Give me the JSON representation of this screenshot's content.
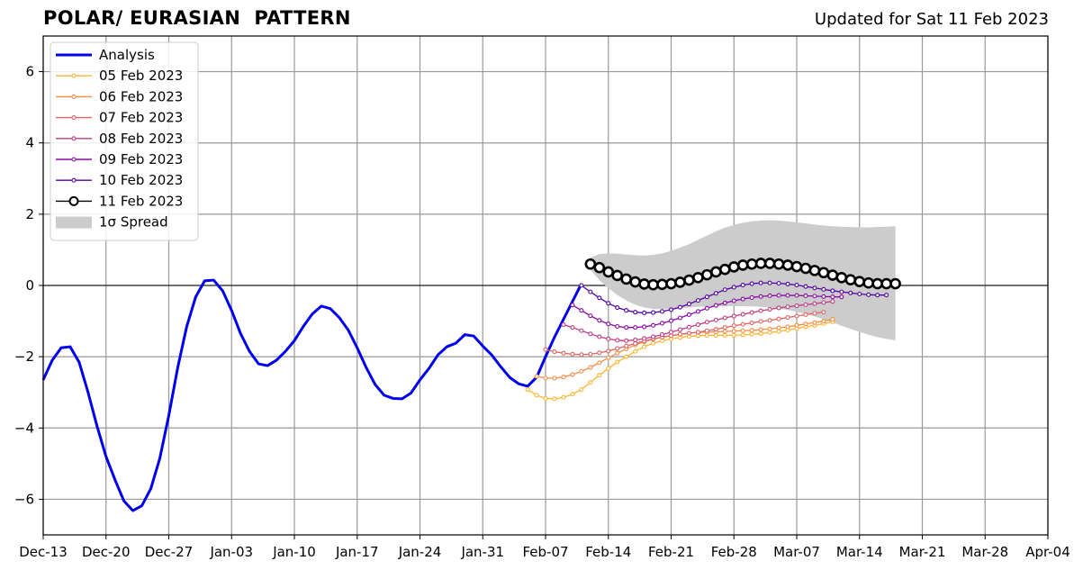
{
  "chart_data": {
    "type": "line",
    "title": "POLAR/ EURASIAN  PATTERN",
    "subtitle": "Updated for Sat 11 Feb 2023",
    "xlabel": "",
    "ylabel": "",
    "x_ticks": [
      "Dec-13",
      "Dec-20",
      "Dec-27",
      "Jan-03",
      "Jan-10",
      "Jan-17",
      "Jan-24",
      "Jan-31",
      "Feb-07",
      "Feb-14",
      "Feb-21",
      "Feb-28",
      "Mar-07",
      "Mar-14",
      "Mar-21",
      "Mar-28",
      "Apr-04"
    ],
    "xlim": [
      "2022-12-13",
      "2023-04-04"
    ],
    "y_ticks": [
      -6,
      -4,
      -2,
      0,
      2,
      4,
      6
    ],
    "ylim": [
      -7,
      7
    ],
    "grid": true,
    "legend_location": "upper-left",
    "series": [
      {
        "name": "Analysis",
        "color": "#0000ee",
        "x_start": "2022-12-13",
        "values": [
          -2.65,
          -2.1,
          -1.75,
          -1.72,
          -2.15,
          -3.0,
          -3.95,
          -4.8,
          -5.45,
          -6.05,
          -6.32,
          -6.18,
          -5.7,
          -4.85,
          -3.65,
          -2.3,
          -1.15,
          -0.32,
          0.13,
          0.15,
          -0.15,
          -0.7,
          -1.35,
          -1.85,
          -2.2,
          -2.25,
          -2.1,
          -1.85,
          -1.55,
          -1.15,
          -0.8,
          -0.58,
          -0.65,
          -0.9,
          -1.25,
          -1.75,
          -2.3,
          -2.78,
          -3.08,
          -3.17,
          -3.18,
          -3.02,
          -2.65,
          -2.33,
          -1.95,
          -1.72,
          -1.62,
          -1.38,
          -1.42,
          -1.7,
          -1.95,
          -2.28,
          -2.58,
          -2.76,
          -2.83,
          -2.58,
          -2.0,
          -1.45,
          -0.95,
          -0.45,
          0.05
        ]
      },
      {
        "name": "05 Feb 2023",
        "color": "#fdb42f",
        "x_start": "2023-02-05",
        "values": [
          -2.92,
          -3.08,
          -3.17,
          -3.18,
          -3.14,
          -3.05,
          -2.92,
          -2.72,
          -2.52,
          -2.33,
          -2.15,
          -2.0,
          -1.85,
          -1.72,
          -1.62,
          -1.55,
          -1.5,
          -1.46,
          -1.43,
          -1.41,
          -1.4,
          -1.4,
          -1.4,
          -1.4,
          -1.39,
          -1.37,
          -1.35,
          -1.32,
          -1.29,
          -1.25,
          -1.21,
          -1.16,
          -1.12,
          -1.07,
          -1.02
        ]
      },
      {
        "name": "06 Feb 2023",
        "color": "#f68d45",
        "x_start": "2023-02-06",
        "values": [
          -2.55,
          -2.6,
          -2.6,
          -2.57,
          -2.5,
          -2.41,
          -2.3,
          -2.17,
          -2.03,
          -1.9,
          -1.78,
          -1.67,
          -1.58,
          -1.51,
          -1.45,
          -1.41,
          -1.37,
          -1.34,
          -1.32,
          -1.31,
          -1.3,
          -1.29,
          -1.28,
          -1.27,
          -1.26,
          -1.24,
          -1.22,
          -1.19,
          -1.16,
          -1.12,
          -1.08,
          -1.04,
          -1.0,
          -0.95
        ]
      },
      {
        "name": "07 Feb 2023",
        "color": "#e16462",
        "x_start": "2023-02-07",
        "values": [
          -1.8,
          -1.86,
          -1.9,
          -1.93,
          -1.94,
          -1.93,
          -1.89,
          -1.84,
          -1.77,
          -1.7,
          -1.63,
          -1.56,
          -1.5,
          -1.45,
          -1.41,
          -1.37,
          -1.34,
          -1.31,
          -1.27,
          -1.23,
          -1.18,
          -1.13,
          -1.09,
          -1.05,
          -1.01,
          -0.98,
          -0.94,
          -0.9,
          -0.86,
          -0.82,
          -0.78,
          -0.75
        ]
      },
      {
        "name": "08 Feb 2023",
        "color": "#c13d83",
        "x_start": "2023-02-09",
        "values": [
          -1.1,
          -1.18,
          -1.27,
          -1.36,
          -1.44,
          -1.5,
          -1.54,
          -1.55,
          -1.53,
          -1.49,
          -1.44,
          -1.38,
          -1.31,
          -1.24,
          -1.17,
          -1.1,
          -1.03,
          -0.97,
          -0.91,
          -0.86,
          -0.81,
          -0.76,
          -0.71,
          -0.67,
          -0.63,
          -0.6,
          -0.57,
          -0.54,
          -0.51,
          -0.48,
          -0.45
        ]
      },
      {
        "name": "09 Feb 2023",
        "color": "#8b0aa5",
        "x_start": "2023-02-10",
        "values": [
          -0.55,
          -0.7,
          -0.85,
          -0.98,
          -1.08,
          -1.15,
          -1.18,
          -1.18,
          -1.16,
          -1.12,
          -1.06,
          -0.99,
          -0.91,
          -0.82,
          -0.73,
          -0.64,
          -0.56,
          -0.49,
          -0.43,
          -0.38,
          -0.34,
          -0.31,
          -0.29,
          -0.28,
          -0.28,
          -0.28,
          -0.29,
          -0.3,
          -0.31,
          -0.32,
          -0.32
        ]
      },
      {
        "name": "10 Feb 2023",
        "color": "#5302a3",
        "x_start": "2023-02-11",
        "values": [
          0.0,
          -0.18,
          -0.35,
          -0.5,
          -0.62,
          -0.7,
          -0.75,
          -0.77,
          -0.76,
          -0.73,
          -0.68,
          -0.61,
          -0.52,
          -0.42,
          -0.32,
          -0.22,
          -0.12,
          -0.05,
          0.01,
          0.05,
          0.07,
          0.07,
          0.06,
          0.04,
          0.01,
          -0.03,
          -0.07,
          -0.11,
          -0.15,
          -0.18,
          -0.21,
          -0.24,
          -0.26,
          -0.27,
          -0.27
        ]
      },
      {
        "name": "11 Feb 2023",
        "color": "#000000",
        "x_start": "2023-02-12",
        "values": [
          0.6,
          0.5,
          0.38,
          0.28,
          0.18,
          0.1,
          0.04,
          0.02,
          0.03,
          0.05,
          0.09,
          0.15,
          0.22,
          0.3,
          0.38,
          0.45,
          0.52,
          0.57,
          0.6,
          0.62,
          0.62,
          0.6,
          0.57,
          0.53,
          0.48,
          0.42,
          0.36,
          0.29,
          0.22,
          0.16,
          0.11,
          0.07,
          0.05,
          0.05,
          0.05
        ]
      }
    ],
    "spread": {
      "name": "1σ Spread",
      "color": "#cccccc",
      "x_start": "2023-02-12",
      "upper": [
        0.78,
        0.88,
        0.9,
        0.89,
        0.87,
        0.85,
        0.84,
        0.86,
        0.9,
        0.97,
        1.06,
        1.16,
        1.28,
        1.4,
        1.52,
        1.62,
        1.7,
        1.76,
        1.8,
        1.82,
        1.83,
        1.82,
        1.8,
        1.77,
        1.74,
        1.71,
        1.68,
        1.66,
        1.65,
        1.64,
        1.63,
        1.63,
        1.64,
        1.65,
        1.66
      ],
      "lower": [
        0.45,
        0.15,
        -0.08,
        -0.27,
        -0.42,
        -0.54,
        -0.62,
        -0.66,
        -0.67,
        -0.66,
        -0.64,
        -0.62,
        -0.6,
        -0.59,
        -0.58,
        -0.58,
        -0.58,
        -0.58,
        -0.59,
        -0.6,
        -0.62,
        -0.65,
        -0.69,
        -0.74,
        -0.8,
        -0.87,
        -0.95,
        -1.04,
        -1.13,
        -1.22,
        -1.3,
        -1.38,
        -1.45,
        -1.5,
        -1.54
      ]
    }
  }
}
